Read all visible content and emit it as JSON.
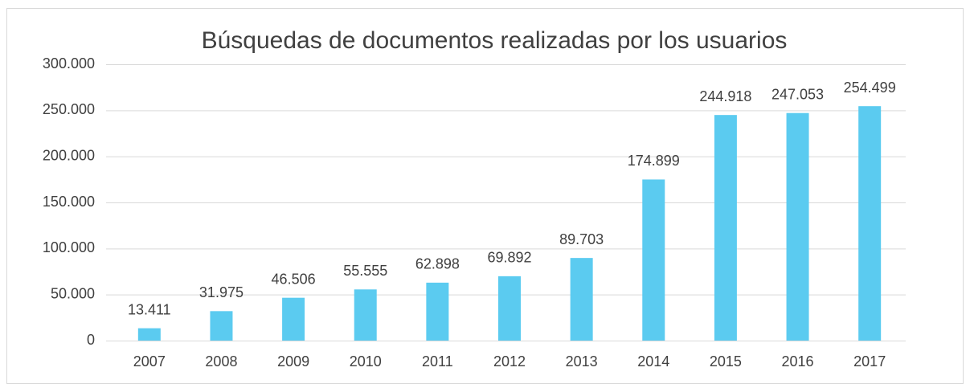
{
  "chart_data": {
    "type": "bar",
    "title": "Búsquedas de documentos realizadas por los usuarios",
    "categories": [
      "2007",
      "2008",
      "2009",
      "2010",
      "2011",
      "2012",
      "2013",
      "2014",
      "2015",
      "2016",
      "2017"
    ],
    "values": [
      13411,
      31975,
      46506,
      55555,
      62898,
      69892,
      89703,
      174899,
      244918,
      247053,
      254499
    ],
    "value_labels": [
      "13.411",
      "31.975",
      "46.506",
      "55.555",
      "62.898",
      "69.892",
      "89.703",
      "174.899",
      "244.918",
      "247.053",
      "254.499"
    ],
    "color": "#5bcbf0",
    "ylim": [
      0,
      300000
    ],
    "yticks": [
      0,
      {
        "value": 50000,
        "label": "50.000"
      },
      {
        "value": 100000,
        "label": "100.000"
      },
      {
        "value": 150000,
        "label": "150.000"
      },
      {
        "value": 200000,
        "label": "200.000"
      },
      {
        "value": 250000,
        "label": "250.000"
      },
      {
        "value": 300000,
        "label": "300.000"
      }
    ],
    "grid": true
  }
}
